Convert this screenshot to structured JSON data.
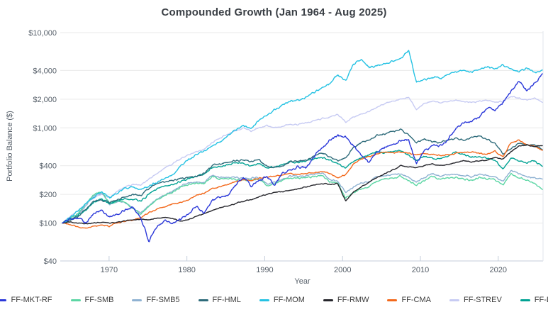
{
  "chart": {
    "title": "Compounded Growth (Jan 1964 - Aug 2025)",
    "x_axis_label": "Year",
    "y_axis_label": "Portfolio Balance ($)"
  },
  "chart_data": {
    "type": "line",
    "title": "Compounded Growth (Jan 1964 - Aug 2025)",
    "xlabel": "Year",
    "ylabel": "Portfolio Balance ($)",
    "log_scale_y": true,
    "grid": true,
    "legend_position": "bottom",
    "x_range": [
      1964.0,
      2025.667
    ],
    "y_range": [
      40,
      10000
    ],
    "x_ticks": [
      1970,
      1980,
      1990,
      2000,
      2010,
      2020
    ],
    "y_ticks": [
      {
        "label": "$10,000",
        "value": 10000
      },
      {
        "label": "$4,000",
        "value": 4000
      },
      {
        "label": "$2,000",
        "value": 2000
      },
      {
        "label": "$1,000",
        "value": 1000
      },
      {
        "label": "$400",
        "value": 400
      },
      {
        "label": "$200",
        "value": 200
      },
      {
        "label": "$100",
        "value": 100
      },
      {
        "label": "$40",
        "value": 40
      }
    ],
    "anchor_years_start": 1964,
    "anchor_step_years": 1,
    "start_value": 100,
    "series": [
      {
        "name": "FF-MKT-RF",
        "color": "#2b38d9",
        "values": [
          100,
          112,
          114,
          102,
          126,
          136,
          116,
          122,
          138,
          146,
          112,
          64,
          90,
          108,
          100,
          108,
          124,
          150,
          128,
          172,
          188,
          196,
          250,
          300,
          245,
          280,
          310,
          255,
          335,
          365,
          390,
          385,
          505,
          615,
          745,
          830,
          800,
          650,
          530,
          430,
          570,
          625,
          665,
          745,
          755,
          420,
          570,
          650,
          645,
          750,
          990,
          1120,
          1150,
          1320,
          1620,
          1540,
          1850,
          2400,
          3100,
          2450,
          2900,
          3700
        ]
      },
      {
        "name": "FF-SMB",
        "color": "#5cd6a4",
        "values": [
          100,
          115,
          125,
          160,
          200,
          215,
          160,
          170,
          165,
          140,
          125,
          150,
          175,
          195,
          210,
          240,
          255,
          265,
          260,
          310,
          290,
          295,
          290,
          280,
          285,
          290,
          245,
          260,
          280,
          300,
          295,
          300,
          310,
          320,
          270,
          260,
          185,
          210,
          230,
          240,
          280,
          290,
          300,
          310,
          280,
          250,
          280,
          310,
          290,
          300,
          300,
          290,
          280,
          300,
          290,
          285,
          250,
          330,
          300,
          280,
          260,
          225
        ]
      },
      {
        "name": "FF-SMB5",
        "color": "#8fb2d2",
        "values": [
          100,
          113,
          122,
          155,
          192,
          208,
          158,
          168,
          164,
          142,
          128,
          152,
          178,
          198,
          215,
          245,
          262,
          272,
          268,
          318,
          300,
          305,
          300,
          292,
          295,
          302,
          258,
          272,
          292,
          312,
          308,
          315,
          325,
          335,
          285,
          275,
          210,
          240,
          260,
          270,
          310,
          315,
          325,
          330,
          300,
          270,
          300,
          330,
          310,
          320,
          325,
          315,
          305,
          325,
          315,
          310,
          270,
          360,
          330,
          310,
          300,
          290
        ]
      },
      {
        "name": "FF-HML",
        "color": "#2e6b7a",
        "values": [
          100,
          108,
          118,
          140,
          170,
          175,
          165,
          175,
          190,
          200,
          195,
          230,
          260,
          270,
          280,
          295,
          300,
          310,
          330,
          400,
          420,
          430,
          450,
          460,
          440,
          460,
          390,
          380,
          400,
          440,
          450,
          460,
          500,
          540,
          500,
          450,
          480,
          620,
          700,
          750,
          830,
          870,
          920,
          950,
          850,
          700,
          760,
          720,
          700,
          740,
          780,
          740,
          800,
          820,
          760,
          680,
          530,
          600,
          690,
          660,
          670,
          590
        ]
      },
      {
        "name": "FF-MOM",
        "color": "#25c2e3",
        "values": [
          100,
          115,
          135,
          160,
          190,
          215,
          185,
          210,
          235,
          240,
          225,
          245,
          268,
          292,
          320,
          400,
          460,
          520,
          560,
          650,
          700,
          820,
          950,
          1060,
          980,
          1200,
          1350,
          1560,
          1750,
          1900,
          1950,
          2100,
          2350,
          2600,
          2950,
          3600,
          3100,
          4700,
          5200,
          4300,
          4500,
          4750,
          5000,
          5300,
          6600,
          3000,
          3200,
          3400,
          3300,
          3600,
          3900,
          4100,
          3800,
          4200,
          4400,
          4200,
          4600,
          4100,
          3900,
          4200,
          3800,
          4050
        ]
      },
      {
        "name": "FF-RMW",
        "color": "#26262c",
        "values": [
          100,
          102,
          100,
          98,
          100,
          102,
          100,
          102,
          105,
          108,
          110,
          108,
          112,
          115,
          112,
          105,
          108,
          118,
          125,
          135,
          145,
          150,
          160,
          170,
          175,
          190,
          200,
          210,
          215,
          220,
          230,
          240,
          250,
          260,
          255,
          260,
          170,
          210,
          240,
          270,
          300,
          330,
          360,
          400,
          390,
          380,
          400,
          420,
          400,
          410,
          430,
          450,
          440,
          450,
          460,
          490,
          470,
          560,
          640,
          660,
          640,
          650
        ]
      },
      {
        "name": "FF-CMA",
        "color": "#f3691c",
        "values": [
          100,
          96,
          92,
          88,
          92,
          95,
          93,
          100,
          104,
          108,
          115,
          128,
          140,
          150,
          158,
          165,
          175,
          195,
          205,
          230,
          240,
          255,
          270,
          285,
          280,
          295,
          303,
          310,
          320,
          330,
          325,
          335,
          340,
          350,
          330,
          300,
          320,
          420,
          470,
          500,
          530,
          560,
          545,
          555,
          540,
          520,
          540,
          530,
          510,
          520,
          540,
          550,
          560,
          540,
          530,
          570,
          490,
          700,
          740,
          660,
          640,
          580
        ]
      },
      {
        "name": "FF-STREV",
        "color": "#c7cbf3",
        "values": [
          100,
          118,
          135,
          160,
          185,
          200,
          185,
          215,
          240,
          255,
          250,
          290,
          330,
          380,
          420,
          470,
          520,
          560,
          600,
          700,
          780,
          860,
          930,
          1000,
          930,
          1000,
          1050,
          1000,
          1050,
          1100,
          1080,
          1120,
          1200,
          1250,
          1300,
          1380,
          1150,
          1300,
          1400,
          1500,
          1650,
          1800,
          1900,
          2000,
          2100,
          1550,
          1800,
          1900,
          1850,
          1900,
          1950,
          1900,
          1850,
          1900,
          1950,
          1850,
          1900,
          2150,
          2050,
          1950,
          2050,
          1850
        ]
      },
      {
        "name": "FF-LTREV",
        "color": "#00a293",
        "values": [
          100,
          110,
          120,
          138,
          165,
          178,
          160,
          172,
          180,
          178,
          170,
          200,
          230,
          245,
          255,
          270,
          290,
          310,
          330,
          380,
          390,
          410,
          430,
          420,
          400,
          420,
          380,
          390,
          410,
          440,
          430,
          450,
          470,
          490,
          460,
          420,
          380,
          450,
          480,
          520,
          560,
          550,
          570,
          580,
          520,
          450,
          500,
          480,
          470,
          500,
          560,
          520,
          490,
          500,
          480,
          455,
          370,
          480,
          450,
          430,
          450,
          395
        ]
      }
    ]
  }
}
